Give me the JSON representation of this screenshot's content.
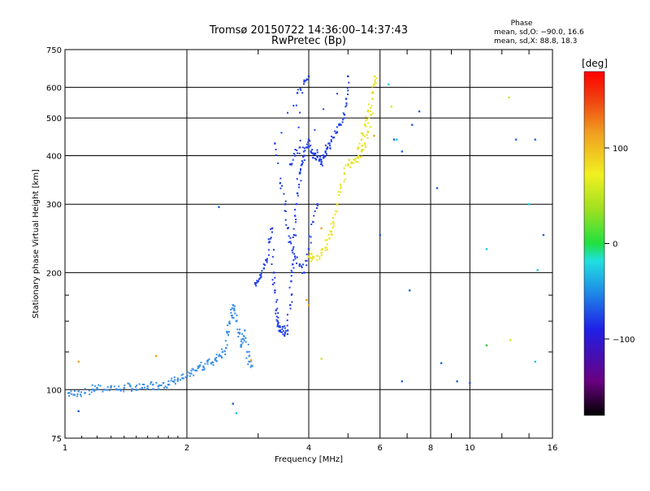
{
  "chart_data": {
    "type": "scatter",
    "title": "Tromsø 20150722 14:36:00–14:37:43",
    "subtitle": "RwPretec (Bp)",
    "xlabel": "Frequency [MHz]",
    "ylabel": "Stationary phase Virtual Height [km]",
    "x_scale": "log",
    "y_scale": "log",
    "xlim": [
      1,
      16
    ],
    "ylim": [
      75,
      750
    ],
    "x_ticks": [
      1,
      2,
      4,
      6,
      8,
      10,
      16
    ],
    "x_tick_labels": [
      "1",
      "2",
      "4",
      "6",
      "8",
      "10",
      "16"
    ],
    "y_ticks": [
      75,
      100,
      200,
      300,
      400,
      500,
      600,
      750
    ],
    "y_tick_labels": [
      "75",
      "100",
      "200",
      "300",
      "400",
      "500",
      "600",
      "750"
    ],
    "grid": true,
    "stats": {
      "header": "Phase",
      "line1": "mean, sd,O: −90.0, 16.6",
      "line2": "mean, sd,X:  88.8, 18.3"
    },
    "colorbar": {
      "label": "[deg]",
      "min": -180,
      "max": 180,
      "ticks": [
        100,
        0,
        -100
      ],
      "tick_labels": [
        "100",
        "0",
        "−100"
      ]
    },
    "colors": {
      "o_trace": "#1f3fe6",
      "x_trace": "#e8e41a",
      "low_layer": "#3a8ee8"
    },
    "series": [
      {
        "phase_deg": -115,
        "color": "#3a8ee8",
        "points": [
          [
            1.02,
            98
          ],
          [
            1.05,
            97
          ],
          [
            1.08,
            99
          ],
          [
            1.12,
            98
          ],
          [
            1.17,
            100
          ],
          [
            1.2,
            101
          ],
          [
            1.25,
            100
          ],
          [
            1.3,
            102
          ],
          [
            1.35,
            100
          ],
          [
            1.4,
            101
          ],
          [
            1.45,
            102
          ],
          [
            1.5,
            100
          ],
          [
            1.55,
            101
          ],
          [
            1.6,
            102
          ],
          [
            1.65,
            103
          ],
          [
            1.7,
            102
          ],
          [
            1.75,
            104
          ],
          [
            1.8,
            103
          ],
          [
            1.85,
            105
          ],
          [
            1.9,
            106
          ],
          [
            1.95,
            107
          ],
          [
            2.0,
            108
          ],
          [
            2.05,
            110
          ],
          [
            2.1,
            112
          ],
          [
            2.15,
            115
          ],
          [
            2.2,
            114
          ],
          [
            2.25,
            118
          ],
          [
            2.3,
            117
          ],
          [
            2.35,
            120
          ],
          [
            2.4,
            122
          ],
          [
            2.45,
            125
          ],
          [
            2.5,
            128
          ],
          [
            2.52,
            140
          ],
          [
            2.55,
            148
          ],
          [
            2.58,
            155
          ],
          [
            2.6,
            165
          ],
          [
            2.62,
            160
          ],
          [
            2.65,
            150
          ],
          [
            2.7,
            140
          ],
          [
            2.72,
            130
          ],
          [
            2.75,
            135
          ],
          [
            2.78,
            142
          ],
          [
            2.82,
            125
          ],
          [
            2.85,
            118
          ],
          [
            2.9,
            115
          ]
        ]
      },
      {
        "phase_deg": -100,
        "color": "#1f3fe6",
        "points": [
          [
            2.95,
            188
          ],
          [
            3.0,
            190
          ],
          [
            3.05,
            195
          ],
          [
            3.1,
            205
          ],
          [
            3.15,
            215
          ],
          [
            3.2,
            240
          ],
          [
            3.25,
            260
          ],
          [
            3.28,
            200
          ],
          [
            3.3,
            180
          ],
          [
            3.32,
            160
          ],
          [
            3.35,
            150
          ],
          [
            3.38,
            145
          ],
          [
            3.4,
            142
          ],
          [
            3.45,
            145
          ],
          [
            3.5,
            140
          ],
          [
            3.55,
            142
          ],
          [
            3.6,
            165
          ],
          [
            3.62,
            190
          ],
          [
            3.65,
            210
          ],
          [
            3.68,
            250
          ],
          [
            3.7,
            280
          ],
          [
            3.75,
            320
          ],
          [
            3.8,
            360
          ],
          [
            3.85,
            380
          ],
          [
            3.9,
            400
          ],
          [
            3.95,
            420
          ],
          [
            4.0,
            440
          ],
          [
            4.05,
            410
          ],
          [
            4.1,
            395
          ],
          [
            4.15,
            405
          ],
          [
            4.2,
            398
          ],
          [
            4.25,
            390
          ],
          [
            4.3,
            385
          ],
          [
            4.35,
            395
          ],
          [
            4.4,
            410
          ],
          [
            4.45,
            420
          ],
          [
            4.5,
            430
          ],
          [
            4.6,
            445
          ],
          [
            4.7,
            460
          ],
          [
            4.8,
            480
          ],
          [
            4.9,
            510
          ],
          [
            4.95,
            560
          ],
          [
            5.0,
            640
          ],
          [
            3.6,
            380
          ],
          [
            3.7,
            400
          ],
          [
            3.8,
            420
          ],
          [
            3.75,
            580
          ],
          [
            3.9,
            620
          ],
          [
            4.0,
            640
          ],
          [
            3.3,
            430
          ],
          [
            3.4,
            340
          ],
          [
            3.5,
            300
          ],
          [
            3.55,
            260
          ],
          [
            3.6,
            240
          ],
          [
            3.7,
            220
          ],
          [
            3.8,
            210
          ],
          [
            3.9,
            200
          ],
          [
            4.0,
            230
          ],
          [
            4.1,
            270
          ],
          [
            4.2,
            300
          ]
        ]
      },
      {
        "phase_deg": 90,
        "color": "#e8e41a",
        "points": [
          [
            4.0,
            220
          ],
          [
            4.05,
            218
          ],
          [
            4.1,
            219
          ],
          [
            4.2,
            221
          ],
          [
            4.3,
            225
          ],
          [
            4.4,
            232
          ],
          [
            4.5,
            245
          ],
          [
            4.55,
            255
          ],
          [
            4.6,
            270
          ],
          [
            4.7,
            300
          ],
          [
            4.8,
            330
          ],
          [
            4.9,
            360
          ],
          [
            5.0,
            380
          ],
          [
            5.1,
            385
          ],
          [
            5.2,
            390
          ],
          [
            5.3,
            395
          ],
          [
            5.4,
            410
          ],
          [
            5.5,
            430
          ],
          [
            5.6,
            460
          ],
          [
            5.7,
            510
          ],
          [
            5.75,
            560
          ],
          [
            5.8,
            610
          ],
          [
            5.82,
            640
          ],
          [
            5.3,
            420
          ],
          [
            5.4,
            440
          ],
          [
            5.5,
            480
          ],
          [
            5.6,
            520
          ]
        ]
      },
      {
        "phase_deg": 160,
        "color": "#f0a020",
        "points": [
          [
            3.95,
            170
          ],
          [
            4.0,
            165
          ],
          [
            4.3,
            260
          ],
          [
            5.8,
            450
          ],
          [
            1.08,
            118
          ],
          [
            1.68,
            122
          ],
          [
            2.88,
            119
          ]
        ]
      },
      {
        "phase_deg": -120,
        "color": "#2060e0",
        "points": [
          [
            6.5,
            440
          ],
          [
            6.8,
            410
          ],
          [
            7.2,
            480
          ],
          [
            7.5,
            520
          ],
          [
            8.3,
            330
          ],
          [
            8.5,
            117
          ],
          [
            9.3,
            105
          ],
          [
            10.0,
            104
          ],
          [
            13.0,
            440
          ],
          [
            14.5,
            440
          ],
          [
            15.2,
            250
          ],
          [
            6.8,
            105
          ],
          [
            7.1,
            180
          ],
          [
            2.4,
            295
          ],
          [
            2.6,
            92
          ],
          [
            1.08,
            88
          ],
          [
            6.0,
            250
          ]
        ]
      },
      {
        "phase_deg": -10,
        "color": "#20c8e0",
        "points": [
          [
            6.3,
            610
          ],
          [
            14.0,
            300
          ],
          [
            11.0,
            230
          ],
          [
            14.7,
            203
          ],
          [
            14.5,
            118
          ],
          [
            6.6,
            440
          ],
          [
            2.65,
            87
          ]
        ]
      },
      {
        "phase_deg": 120,
        "color": "#d8e030",
        "points": [
          [
            12.5,
            565
          ],
          [
            12.6,
            134
          ],
          [
            4.3,
            120
          ],
          [
            6.4,
            535
          ]
        ]
      },
      {
        "phase_deg": 40,
        "color": "#40c040",
        "points": [
          [
            11.0,
            130
          ]
        ]
      }
    ]
  }
}
